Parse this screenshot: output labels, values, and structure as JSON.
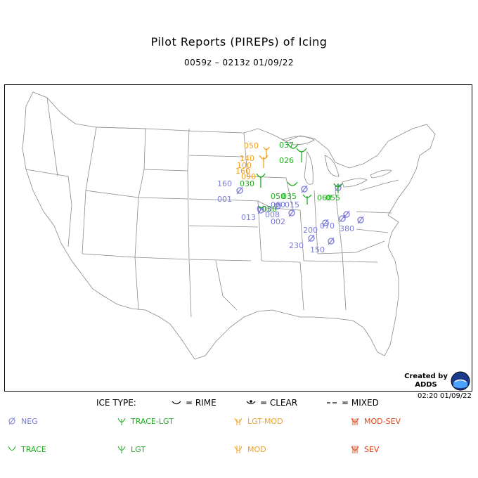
{
  "title": "Pilot Reports (PIREPs) of Icing",
  "subtitle": "0059z – 0213z  01/09/22",
  "credit": {
    "line1": "Created by",
    "line2": "ADDS",
    "timestamp": "02:20 01/09/22"
  },
  "legend": {
    "ice_type_label": "ICE TYPE:",
    "rime": "= RIME",
    "clear": "= CLEAR",
    "mixed": "= MIXED",
    "intensities": [
      {
        "key": "neg",
        "label": "NEG",
        "color": "#7b7bd9"
      },
      {
        "key": "trace-lgt",
        "label": "TRACE-LGT",
        "color": "#22aa22"
      },
      {
        "key": "lgt-mod",
        "label": "LGT-MOD",
        "color": "#f0a020"
      },
      {
        "key": "mod-sev",
        "label": "MOD-SEV",
        "color": "#e84010"
      },
      {
        "key": "trace",
        "label": "TRACE",
        "color": "#22aa22"
      },
      {
        "key": "lgt",
        "label": "LGT",
        "color": "#22aa22"
      },
      {
        "key": "mod",
        "label": "MOD",
        "color": "#f0a020"
      },
      {
        "key": "sev",
        "label": "SEV",
        "color": "#e84010"
      }
    ]
  },
  "reports": {
    "labels": [
      {
        "text": "050",
        "color": "#f0a020"
      },
      {
        "text": "037",
        "color": "#22aa22"
      },
      {
        "text": "026",
        "color": "#22aa22"
      },
      {
        "text": "140",
        "color": "#f0a020"
      },
      {
        "text": "100",
        "color": "#f0a020"
      },
      {
        "text": "160",
        "color": "#f0a020"
      },
      {
        "text": "090",
        "color": "#f0a020"
      },
      {
        "text": "030",
        "color": "#22aa22"
      },
      {
        "text": "160",
        "color": "#7b7bd9"
      },
      {
        "text": "001",
        "color": "#7b7bd9"
      },
      {
        "text": "050",
        "color": "#22aa22"
      },
      {
        "text": "035",
        "color": "#22aa22"
      },
      {
        "text": "060",
        "color": "#7b7bd9"
      },
      {
        "text": "015",
        "color": "#7b7bd9"
      },
      {
        "text": "003",
        "color": "#7b7bd9"
      },
      {
        "text": "000",
        "color": "#22aa22"
      },
      {
        "text": "008",
        "color": "#7b7bd9"
      },
      {
        "text": "013",
        "color": "#7b7bd9"
      },
      {
        "text": "002",
        "color": "#7b7bd9"
      },
      {
        "text": "060",
        "color": "#22aa22"
      },
      {
        "text": "055",
        "color": "#22aa22"
      },
      {
        "text": "200",
        "color": "#7b7bd9"
      },
      {
        "text": "070",
        "color": "#7b7bd9"
      },
      {
        "text": "380",
        "color": "#7b7bd9"
      },
      {
        "text": "230",
        "color": "#7b7bd9"
      },
      {
        "text": "150",
        "color": "#7b7bd9"
      }
    ]
  }
}
